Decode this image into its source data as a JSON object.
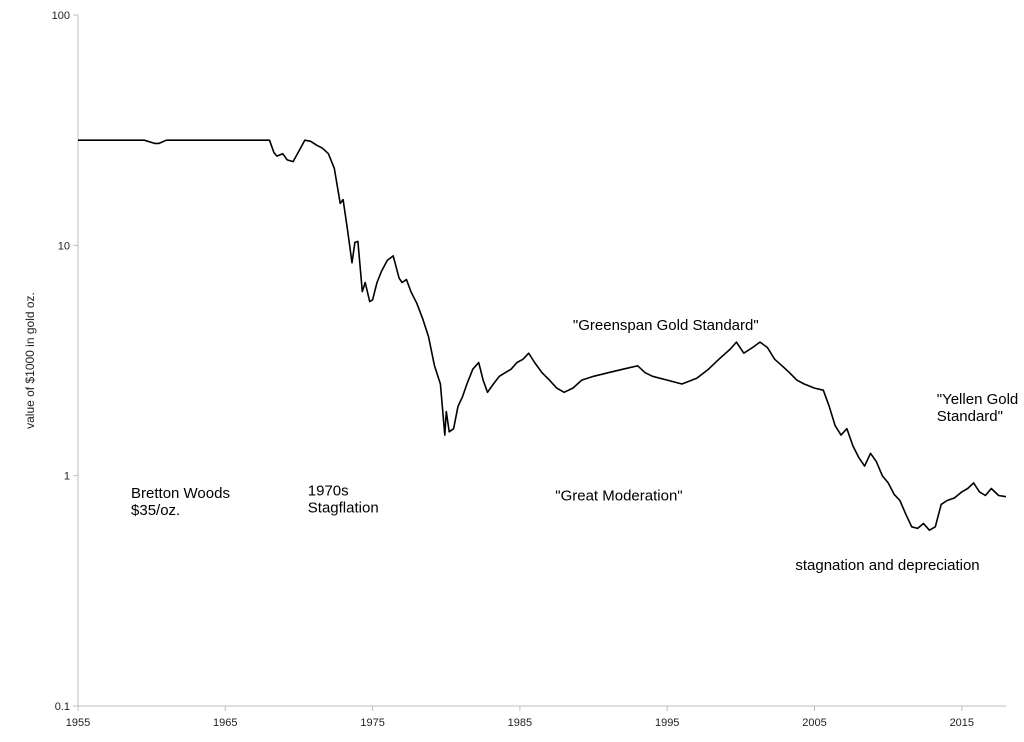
{
  "chart_data": {
    "type": "line",
    "title": "",
    "xlabel": "",
    "ylabel": "value of $1000 in gold oz.",
    "y_scale": "log",
    "ylim": [
      0.1,
      100
    ],
    "xlim": [
      1955,
      2018
    ],
    "grid": false,
    "legend": "none",
    "x_ticks": [
      "1955",
      "1965",
      "1975",
      "1985",
      "1995",
      "2005",
      "2015"
    ],
    "y_ticks": [
      "0.1",
      "1",
      "10",
      "100"
    ],
    "line_color": "#000000",
    "annotations": [
      {
        "lines": [
          "Bretton Woods",
          "$35/oz."
        ],
        "x": 1958.6,
        "y": 0.8
      },
      {
        "lines": [
          "1970s",
          "Stagflation"
        ],
        "x": 1970.6,
        "y": 0.82
      },
      {
        "lines": [
          "\"Great Moderation\""
        ],
        "x": 1987.4,
        "y": 0.78
      },
      {
        "lines": [
          "\"Greenspan Gold Standard\""
        ],
        "x": 1988.6,
        "y": 4.3
      },
      {
        "lines": [
          "stagnation and depreciation"
        ],
        "x": 2003.7,
        "y": 0.39
      },
      {
        "lines": [
          "\"Yellen Gold",
          "Standard\""
        ],
        "x": 2013.3,
        "y": 2.05
      }
    ],
    "series": [
      {
        "x": [
          1955.0,
          1959.5,
          1960.2,
          1960.5,
          1961.0,
          1961.2,
          1962.0,
          1964.0,
          1966.0,
          1968.0,
          1968.3,
          1968.5,
          1968.9,
          1969.2,
          1969.6,
          1970.0,
          1970.4,
          1970.8,
          1971.2,
          1971.6,
          1972.0,
          1972.4,
          1972.8,
          1973.0,
          1973.3,
          1973.6,
          1973.8,
          1974.0,
          1974.3,
          1974.5,
          1974.8,
          1975.0,
          1975.3,
          1975.6,
          1976.0,
          1976.4,
          1976.8,
          1977.0,
          1977.3,
          1977.6,
          1978.0,
          1978.4,
          1978.8,
          1979.2,
          1979.6,
          1979.9,
          1980.0,
          1980.2,
          1980.5,
          1980.8,
          1981.1,
          1981.4,
          1981.8,
          1982.2,
          1982.5,
          1982.8,
          1983.2,
          1983.6,
          1984.0,
          1984.4,
          1984.8,
          1985.2,
          1985.6,
          1986.0,
          1986.5,
          1987.0,
          1987.5,
          1988.0,
          1988.6,
          1989.2,
          1990.0,
          1991.0,
          1992.0,
          1993.0,
          1993.5,
          1994.0,
          1995.0,
          1996.0,
          1997.0,
          1997.8,
          1998.5,
          1999.3,
          1999.7,
          2000.2,
          2000.8,
          2001.3,
          2001.8,
          2002.3,
          2002.8,
          2003.3,
          2003.8,
          2004.3,
          2005.0,
          2005.6,
          2006.0,
          2006.4,
          2006.8,
          2007.2,
          2007.6,
          2008.0,
          2008.4,
          2008.8,
          2009.2,
          2009.6,
          2010.0,
          2010.4,
          2010.8,
          2011.2,
          2011.6,
          2012.0,
          2012.4,
          2012.8,
          2013.2,
          2013.6,
          2014.0,
          2014.5,
          2015.0,
          2015.4,
          2015.8,
          2016.2,
          2016.6,
          2017.0,
          2017.5,
          2018.0
        ],
        "y": [
          28.6,
          28.6,
          27.7,
          27.7,
          28.6,
          28.6,
          28.6,
          28.6,
          28.6,
          28.6,
          25.3,
          24.4,
          25.0,
          23.5,
          23.1,
          25.7,
          28.6,
          28.3,
          27.2,
          26.4,
          25.0,
          21.6,
          15.2,
          15.8,
          11.6,
          8.4,
          10.3,
          10.4,
          6.3,
          6.9,
          5.7,
          5.8,
          6.9,
          7.7,
          8.6,
          9.0,
          7.2,
          6.9,
          7.1,
          6.3,
          5.6,
          4.8,
          4.0,
          3.0,
          2.5,
          1.5,
          1.9,
          1.55,
          1.6,
          2.0,
          2.2,
          2.5,
          2.9,
          3.1,
          2.6,
          2.3,
          2.5,
          2.7,
          2.8,
          2.9,
          3.1,
          3.2,
          3.4,
          3.1,
          2.8,
          2.6,
          2.4,
          2.3,
          2.4,
          2.6,
          2.7,
          2.8,
          2.9,
          3.0,
          2.8,
          2.7,
          2.6,
          2.5,
          2.65,
          2.9,
          3.2,
          3.55,
          3.8,
          3.4,
          3.6,
          3.8,
          3.6,
          3.2,
          3.0,
          2.8,
          2.6,
          2.5,
          2.4,
          2.35,
          2.0,
          1.65,
          1.5,
          1.6,
          1.35,
          1.2,
          1.1,
          1.25,
          1.15,
          1.0,
          0.93,
          0.83,
          0.78,
          0.68,
          0.6,
          0.59,
          0.62,
          0.58,
          0.6,
          0.75,
          0.78,
          0.8,
          0.85,
          0.88,
          0.93,
          0.85,
          0.82,
          0.88,
          0.82,
          0.81
        ]
      }
    ]
  }
}
